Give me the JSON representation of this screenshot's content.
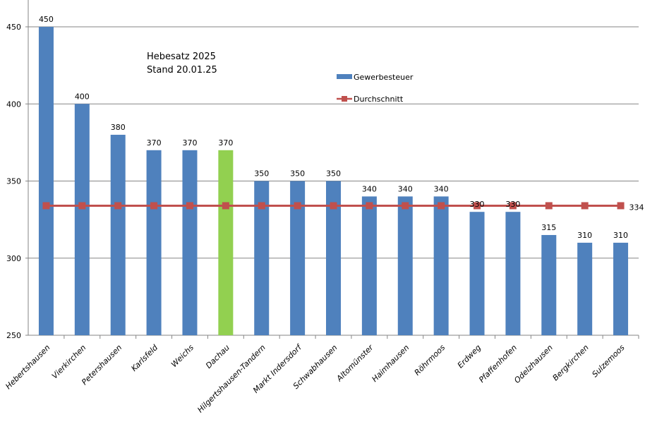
{
  "chart_data": {
    "type": "bar",
    "title_lines": [
      "Hebesatz 2025",
      "Stand 20.01.25"
    ],
    "categories": [
      "Hebertshausen",
      "Vierkirchen",
      "Petershausen",
      "Karlsfeld",
      "Weichs",
      "Dachau",
      "Hilgertshausen-Tandern",
      "Markt Indersdorf",
      "Schwabhausen",
      "Altomünster",
      "Haimhausen",
      "Röhrmoos",
      "Erdweg",
      "Pfaffenhofen",
      "Odelzhausen",
      "Bergkirchen",
      "Sulzemoos"
    ],
    "series": [
      {
        "name": "Gewerbesteuer",
        "type": "bar",
        "color": "#4F81BD",
        "highlight_color": "#92D050",
        "highlight_index": 5,
        "values": [
          450,
          400,
          380,
          370,
          370,
          370,
          350,
          350,
          350,
          340,
          340,
          340,
          330,
          330,
          315,
          310,
          310
        ],
        "labels": [
          "450",
          "400",
          "380",
          "370",
          "370",
          "370",
          "350",
          "350",
          "350",
          "340",
          "340",
          "340",
          "330",
          "330",
          "315",
          "310",
          "310"
        ]
      },
      {
        "name": "Durchschnitt",
        "type": "line",
        "color": "#C0504D",
        "value": 334,
        "end_label": "334"
      }
    ],
    "yticks": [
      "250",
      "300",
      "350",
      "400",
      "450"
    ],
    "ytick_values": [
      250,
      300,
      350,
      400,
      450
    ],
    "ylim": [
      250,
      450
    ],
    "grid": true,
    "legend_placement": "top-center"
  }
}
